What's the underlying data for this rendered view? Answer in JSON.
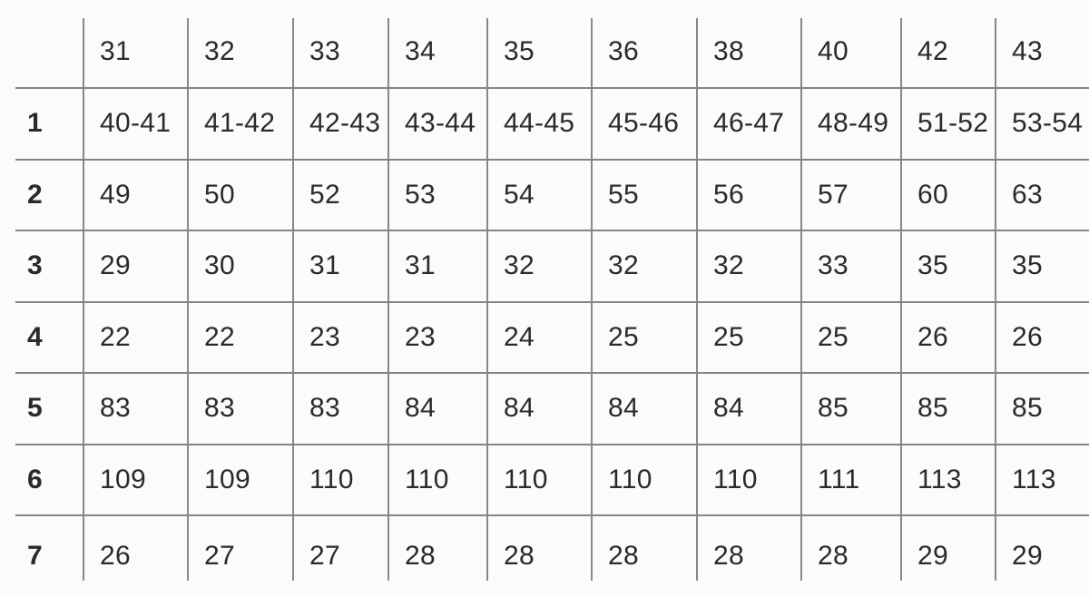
{
  "chart_data": {
    "type": "table",
    "title": "",
    "column_headers": [
      "31",
      "32",
      "33",
      "34",
      "35",
      "36",
      "38",
      "40",
      "42",
      "43"
    ],
    "corner_label": "",
    "rows": [
      {
        "label": "1",
        "values": [
          "40-41",
          "41-42",
          "42-43",
          "43-44",
          "44-45",
          "45-46",
          "46-47",
          "48-49",
          "51-52",
          "53-54"
        ]
      },
      {
        "label": "2",
        "values": [
          "49",
          "50",
          "52",
          "53",
          "54",
          "55",
          "56",
          "57",
          "60",
          "63"
        ]
      },
      {
        "label": "3",
        "values": [
          "29",
          "30",
          "31",
          "31",
          "32",
          "32",
          "32",
          "33",
          "35",
          "35"
        ]
      },
      {
        "label": "4",
        "values": [
          "22",
          "22",
          "23",
          "23",
          "24",
          "25",
          "25",
          "25",
          "26",
          "26"
        ]
      },
      {
        "label": "5",
        "values": [
          "83",
          "83",
          "83",
          "84",
          "84",
          "84",
          "84",
          "85",
          "85",
          "85"
        ]
      },
      {
        "label": "6",
        "values": [
          "109",
          "109",
          "110",
          "110",
          "110",
          "110",
          "110",
          "111",
          "113",
          "113"
        ]
      },
      {
        "label": "7",
        "values": [
          "26",
          "27",
          "27",
          "28",
          "28",
          "28",
          "28",
          "28",
          "29",
          "29"
        ]
      }
    ]
  },
  "colors": {
    "background": "#fbfbfb",
    "grid_line": "#888888",
    "text": "#2a2a2a"
  }
}
